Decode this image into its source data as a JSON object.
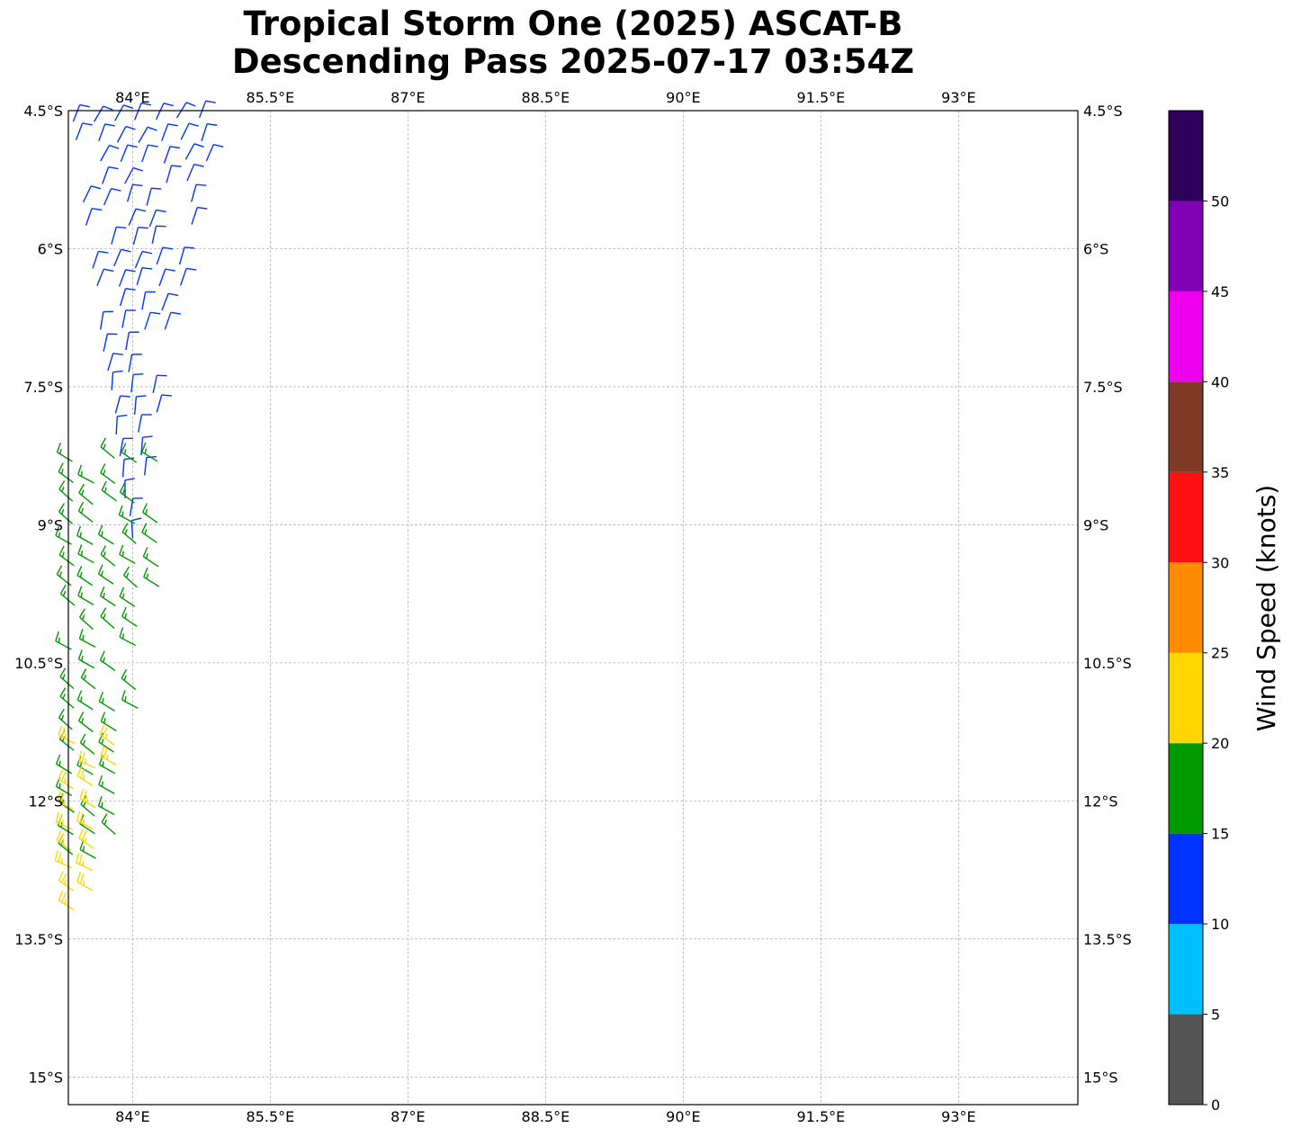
{
  "chart_data": {
    "type": "scatter",
    "title_lines": [
      "Tropical Storm One (2025) ASCAT-B",
      "Descending Pass 2025-07-17 03:54Z"
    ],
    "xlim": [
      83.3,
      94.3
    ],
    "ylim": [
      -15.3,
      -4.5
    ],
    "x_ticks": [
      84,
      85.5,
      87,
      88.5,
      90,
      91.5,
      93
    ],
    "x_tick_labels": [
      "84°E",
      "85.5°E",
      "87°E",
      "88.5°E",
      "90°E",
      "91.5°E",
      "93°E"
    ],
    "y_ticks": [
      -4.5,
      -6,
      -7.5,
      -9,
      -10.5,
      -12,
      -13.5,
      -15
    ],
    "y_tick_labels": [
      "4.5°S",
      "6°S",
      "7.5°S",
      "9°S",
      "10.5°S",
      "12°S",
      "13.5°S",
      "15°S"
    ],
    "grid": true,
    "colorbar": {
      "label": "Wind Speed (knots)",
      "levels": [
        0,
        5,
        10,
        15,
        20,
        25,
        30,
        35,
        40,
        45,
        50,
        55
      ],
      "tick_values": [
        0,
        5,
        10,
        15,
        20,
        25,
        30,
        35,
        40,
        45,
        50
      ],
      "tick_labels": [
        "0",
        "5",
        "10",
        "15",
        "20",
        "25",
        "30",
        "35",
        "40",
        "45",
        "50"
      ],
      "colors": [
        "#555555",
        "#00bfff",
        "#0033ff",
        "#009900",
        "#ffd700",
        "#ff8c00",
        "#ff1111",
        "#7f3a26",
        "#ee00ee",
        "#8000b3",
        "#2e0059"
      ]
    },
    "barb_series": [
      {
        "speed_range": [
          10,
          15
        ],
        "color": "#0033ff",
        "region": {
          "lon_west_edge": [
            83.3,
            84.0
          ],
          "lon_east_edge": [
            84.9,
            83.9
          ],
          "lat": [
            -4.6,
            -9.6
          ]
        }
      },
      {
        "speed_range": [
          15,
          20
        ],
        "color": "#009900",
        "region": {
          "lon_west_edge": [
            83.3,
            83.3
          ],
          "lon_east_edge": [
            84.5,
            83.8
          ],
          "lat": [
            -8.3,
            -12.6
          ]
        }
      },
      {
        "speed_range": [
          20,
          25
        ],
        "color": "#ffd700",
        "region": {
          "lon_west_edge": [
            83.3,
            83.3
          ],
          "lon_east_edge": [
            83.9,
            83.6
          ],
          "lat": [
            -11.4,
            -13.2
          ]
        }
      }
    ]
  }
}
